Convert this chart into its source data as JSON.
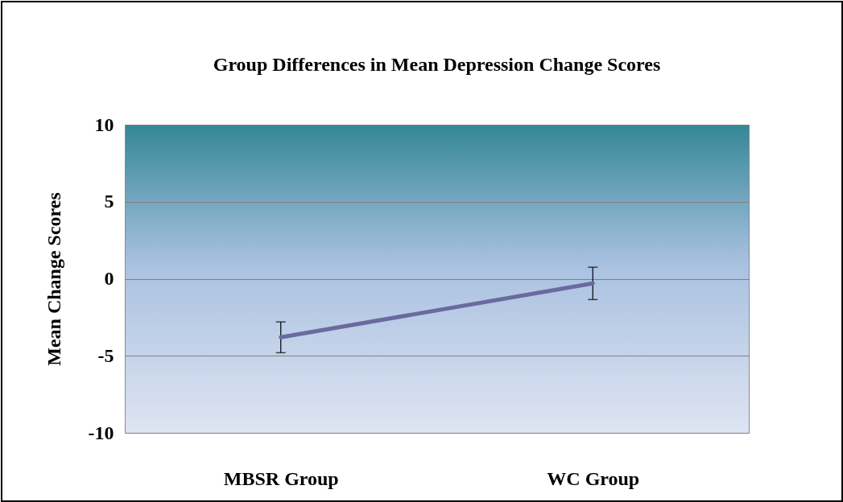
{
  "chart_data": {
    "type": "line",
    "title": "Group Differences in Mean Depression Change Scores",
    "ylabel": "Mean Change Scores",
    "categories": [
      "MBSR Group",
      "WC Group"
    ],
    "series": [
      {
        "color": "#6a6aa0",
        "values": [
          -3.8,
          -0.3
        ],
        "errors": [
          1.0,
          1.05
        ]
      }
    ],
    "ylim": [
      -10,
      10
    ],
    "yticks": [
      -10,
      -5,
      0,
      5,
      10
    ],
    "grid": "y",
    "marker": "none",
    "line_style": "solid"
  }
}
